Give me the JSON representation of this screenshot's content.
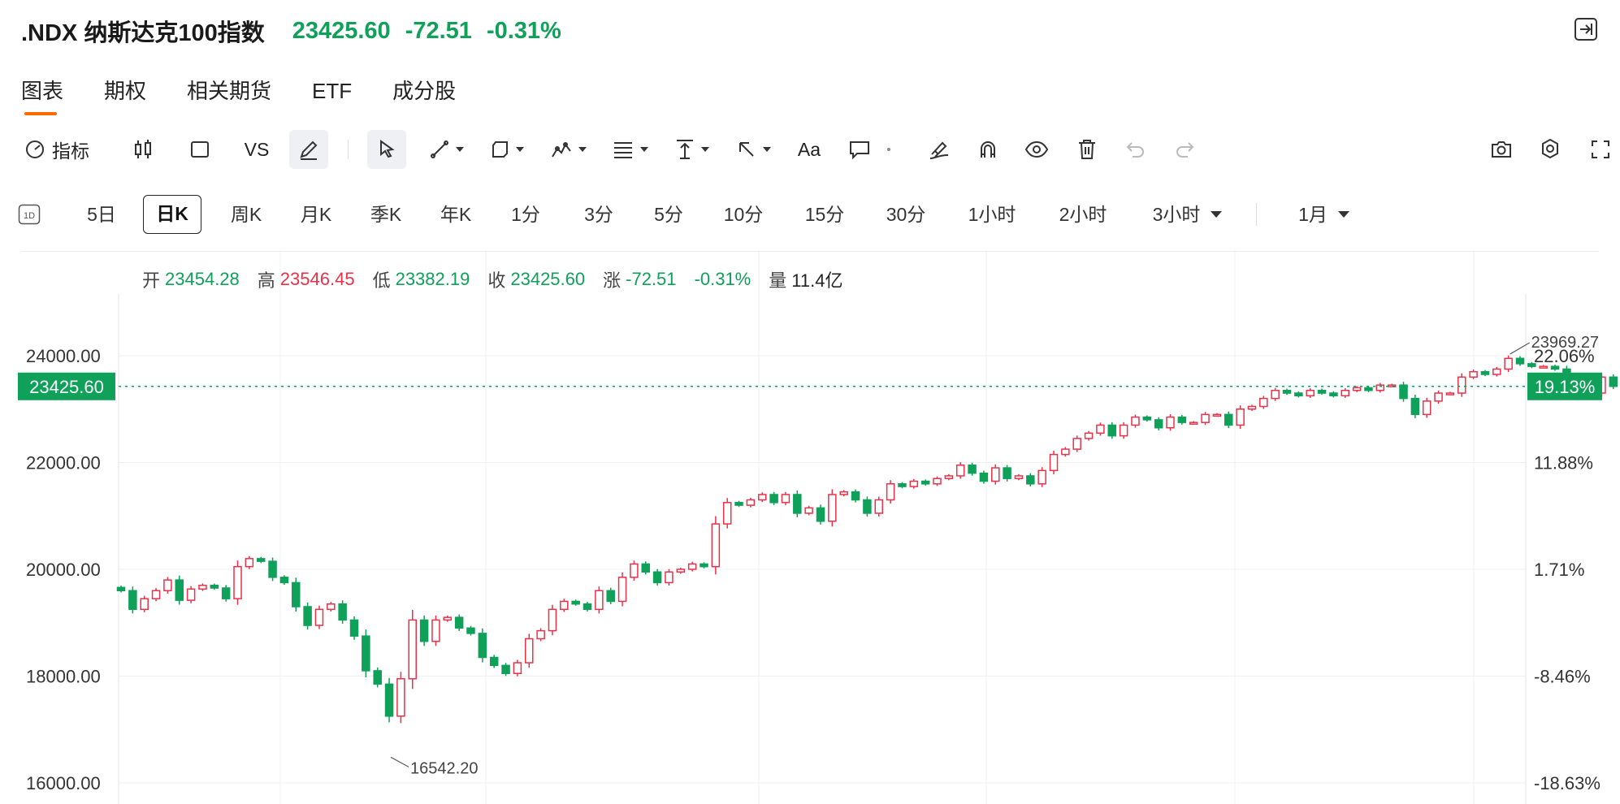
{
  "header": {
    "symbol": ".NDX 纳斯达克100指数",
    "price": "23425.60",
    "change": "-72.51",
    "change_pct": "-0.31%",
    "quote_color": "#0fa05a"
  },
  "tabs": [
    {
      "label": "图表",
      "active": true
    },
    {
      "label": "期权"
    },
    {
      "label": "相关期货"
    },
    {
      "label": "ETF"
    },
    {
      "label": "成分股"
    }
  ],
  "toolbar": {
    "indicators_label": "指标",
    "vs_label": "VS",
    "text_label": "Aa",
    "icons": [
      "gauge-icon",
      "candlestick-icon",
      "square-icon",
      "pencil-icon",
      "cursor-icon",
      "line-tool-icon",
      "shape-tool-icon",
      "pattern-tool-icon",
      "fib-tool-icon",
      "measure-tool-icon",
      "arrow-tool-icon",
      "comment-icon",
      "eraser-icon",
      "magnet-icon",
      "eye-icon",
      "trash-icon",
      "undo-icon",
      "redo-icon",
      "camera-icon",
      "gear-icon",
      "fullscreen-icon"
    ]
  },
  "periods": {
    "items": [
      "5日",
      "日K",
      "周K",
      "月K",
      "季K",
      "年K",
      "1分",
      "3分",
      "5分",
      "10分",
      "15分",
      "30分",
      "1小时",
      "2小时",
      "3小时"
    ],
    "active": "日K",
    "intraday_icon_label": "1D",
    "range_label": "1月"
  },
  "ohlc": {
    "open_label": "开",
    "open": "23454.28",
    "high_label": "高",
    "high": "23546.45",
    "low_label": "低",
    "low": "23382.19",
    "close_label": "收",
    "close": "23425.60",
    "change_label": "涨",
    "change": "-72.51",
    "change_pct": "-0.31%",
    "volume_label": "量",
    "volume": "11.4亿"
  },
  "chart_data": {
    "type": "candlestick",
    "y_left_ticks": [
      "24000.00",
      "22000.00",
      "20000.00",
      "18000.00",
      "16000.00"
    ],
    "y_right_ticks": [
      "22.06%",
      "11.88%",
      "1.71%",
      "-8.46%",
      "-18.63%"
    ],
    "ylim": [
      16000,
      24000
    ],
    "current_price_label": "23425.60",
    "current_pct_label": "19.13%",
    "current_price": 23425.6,
    "high_annotation": "23969.27",
    "high_annotation_value": 23969.27,
    "low_annotation": "16542.20",
    "low_annotation_value": 16542.2,
    "up_color": "#e8324a",
    "down_color": "#0fa05a",
    "grid": true,
    "closes": [
      19600,
      19250,
      19450,
      19600,
      19800,
      19420,
      19630,
      19700,
      19650,
      19450,
      20050,
      20200,
      20150,
      19850,
      19750,
      19300,
      18950,
      19250,
      19350,
      19050,
      18750,
      18100,
      17850,
      17250,
      17950,
      19050,
      18650,
      19050,
      19100,
      18900,
      18800,
      18350,
      18200,
      18050,
      18250,
      18700,
      18850,
      19250,
      19400,
      19350,
      19250,
      19600,
      19400,
      19850,
      20100,
      19950,
      19750,
      19950,
      20000,
      20100,
      20050,
      20850,
      21250,
      21200,
      21300,
      21400,
      21250,
      21400,
      21050,
      21150,
      20900,
      21400,
      21450,
      21300,
      21050,
      21300,
      21600,
      21550,
      21650,
      21600,
      21700,
      21750,
      21950,
      21800,
      21650,
      21900,
      21700,
      21750,
      21600,
      21850,
      22150,
      22250,
      22450,
      22550,
      22700,
      22500,
      22700,
      22850,
      22800,
      22650,
      22850,
      22750,
      22750,
      22900,
      22900,
      22700,
      23000,
      23050,
      23200,
      23350,
      23300,
      23250,
      23350,
      23300,
      23250,
      23350,
      23400,
      23350,
      23450,
      23450,
      23200,
      22900,
      23150,
      23300,
      23300,
      23600,
      23700,
      23650,
      23750,
      23950,
      23850,
      23800,
      23800,
      23750,
      23500,
      23350,
      23300,
      23600,
      23426
    ]
  }
}
